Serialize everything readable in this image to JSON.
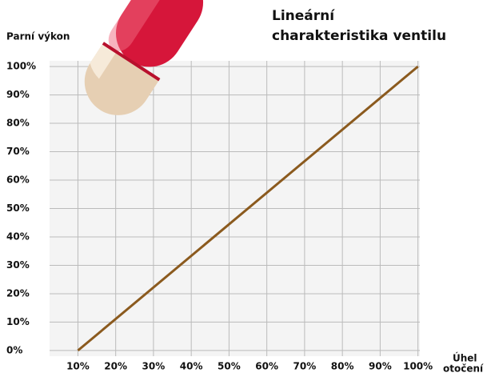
{
  "chart_data": {
    "type": "line",
    "title": [
      "Lineární",
      "charakteristika ventilu"
    ],
    "y_label": "Parní výkon",
    "x_label": [
      "Úhel",
      "otočení"
    ],
    "x": [
      10,
      100
    ],
    "values": [
      0,
      100
    ],
    "color": "#8b5a1e",
    "xlim": [
      2.5,
      100.5
    ],
    "ylim": [
      -2,
      102
    ],
    "xticks": [
      {
        "value": 10,
        "label": "10%"
      },
      {
        "value": 20,
        "label": "20%"
      },
      {
        "value": 30,
        "label": "30%"
      },
      {
        "value": 40,
        "label": "40%"
      },
      {
        "value": 50,
        "label": "50%"
      },
      {
        "value": 60,
        "label": "60%"
      },
      {
        "value": 70,
        "label": "70%"
      },
      {
        "value": 80,
        "label": "80%"
      },
      {
        "value": 90,
        "label": "90%"
      },
      {
        "value": 100,
        "label": "100%"
      }
    ],
    "yticks": [
      {
        "value": 0,
        "label": "0%"
      },
      {
        "value": 10,
        "label": "10%"
      },
      {
        "value": 20,
        "label": "20%"
      },
      {
        "value": 30,
        "label": "30%"
      },
      {
        "value": 40,
        "label": "40%"
      },
      {
        "value": 50,
        "label": "50%"
      },
      {
        "value": 60,
        "label": "60%"
      },
      {
        "value": 70,
        "label": "70%"
      },
      {
        "value": 80,
        "label": "80%"
      },
      {
        "value": 90,
        "label": "90%"
      },
      {
        "value": 100,
        "label": "100%"
      }
    ],
    "grid": true
  }
}
